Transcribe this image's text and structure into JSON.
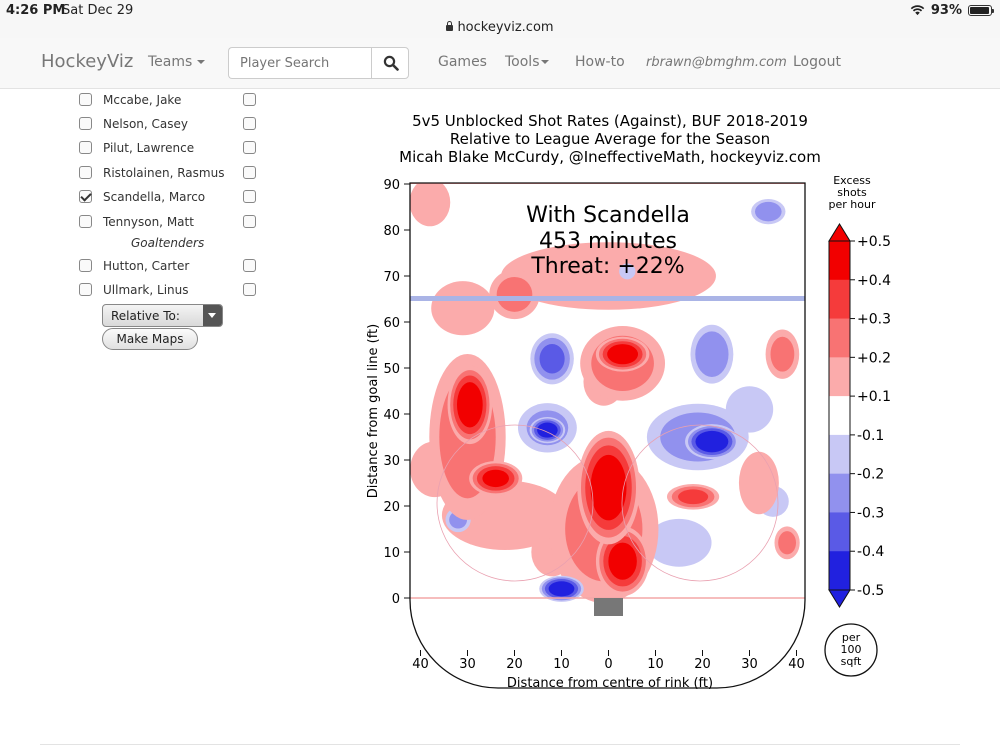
{
  "status_bar": {
    "time": "4:26 PM",
    "date": "Sat Dec 29",
    "battery": "93%"
  },
  "address_bar": {
    "url": "hockeyviz.com"
  },
  "navbar": {
    "brand": "HockeyViz",
    "teams_label": "Teams",
    "search_placeholder": "Player Search",
    "games_label": "Games",
    "tools_label": "Tools",
    "howto_label": "How-to",
    "user_email": "rbrawn@bmghm.com",
    "logout_label": "Logout"
  },
  "player_list": {
    "players": [
      {
        "name": "Mccabe, Jake",
        "checked": false
      },
      {
        "name": "Nelson, Casey",
        "checked": false
      },
      {
        "name": "Pilut, Lawrence",
        "checked": false
      },
      {
        "name": "Ristolainen, Rasmus",
        "checked": false
      },
      {
        "name": "Scandella, Marco",
        "checked": true
      },
      {
        "name": "Tennyson, Matt",
        "checked": false
      }
    ],
    "goaltenders_heading": "Goaltenders",
    "goaltenders": [
      {
        "name": "Hutton, Carter",
        "checked": false
      },
      {
        "name": "Ullmark, Linus",
        "checked": false
      }
    ],
    "relative_to_label": "Relative To:",
    "make_maps_label": "Make Maps"
  },
  "chart": {
    "title_line1": "5v5 Unblocked Shot Rates (Against), BUF 2018-2019",
    "title_line2": "Relative to League Average for the Season",
    "title_line3": "Micah Blake McCurdy, @IneffectiveMath, hockeyviz.com",
    "annotation_line1": "With Scandella",
    "annotation_line2": "453 minutes",
    "annotation_line3": "Threat: +22%",
    "xlabel": "Distance from centre of rink (ft)",
    "ylabel": "Distance from goal line (ft)",
    "xticks": [
      "40",
      "30",
      "20",
      "10",
      "0",
      "10",
      "20",
      "30",
      "40"
    ],
    "yticks": [
      "0",
      "10",
      "20",
      "30",
      "40",
      "50",
      "60",
      "70",
      "80",
      "90"
    ],
    "colorbar_title": [
      "Excess",
      "shots",
      "per hour"
    ],
    "colorbar_ticks": [
      "+0.5",
      "+0.4",
      "+0.3",
      "+0.2",
      "+0.1",
      "-0.1",
      "-0.2",
      "-0.3",
      "-0.4",
      "-0.5"
    ],
    "colorbar_colors": [
      "#f20000",
      "#f53b3b",
      "#f87373",
      "#fbabab",
      "#ffffff",
      "#c8c8f5",
      "#9191ee",
      "#5a5ae6",
      "#2121df"
    ],
    "unit_badge": [
      "per",
      "100",
      "sqft"
    ]
  },
  "chart_data": {
    "type": "heatmap",
    "x_range": [
      -42,
      42
    ],
    "y_range": [
      -8,
      90
    ],
    "blobs": [
      {
        "x": -29.5,
        "y": 42,
        "rx": 5,
        "ry": 9,
        "v": 0.45
      },
      {
        "x": -24,
        "y": 26,
        "rx": 6,
        "ry": 4,
        "v": 0.4
      },
      {
        "x": -30,
        "y": 35,
        "rx": 9,
        "ry": 20,
        "v": 0.22
      },
      {
        "x": -22,
        "y": 18,
        "rx": 16,
        "ry": 9,
        "v": 0.12
      },
      {
        "x": -37,
        "y": 28,
        "rx": 6,
        "ry": 7,
        "v": 0.15
      },
      {
        "x": -31,
        "y": 63,
        "rx": 8,
        "ry": 7,
        "v": 0.12
      },
      {
        "x": -20,
        "y": 66,
        "rx": 6,
        "ry": 6,
        "v": 0.2
      },
      {
        "x": -38,
        "y": 86,
        "rx": 5,
        "ry": 6,
        "v": 0.15
      },
      {
        "x": 0,
        "y": 24,
        "rx": 7,
        "ry": 13,
        "v": 0.45
      },
      {
        "x": 3,
        "y": 8,
        "rx": 6,
        "ry": 8,
        "v": 0.42
      },
      {
        "x": -1,
        "y": 15,
        "rx": 13,
        "ry": 18,
        "v": 0.2
      },
      {
        "x": -12,
        "y": 10,
        "rx": 5,
        "ry": 6,
        "v": 0.18
      },
      {
        "x": 3,
        "y": 53,
        "rx": 6,
        "ry": 4,
        "v": 0.45
      },
      {
        "x": 3,
        "y": 51,
        "rx": 10,
        "ry": 9,
        "v": 0.22
      },
      {
        "x": -1,
        "y": 47,
        "rx": 5,
        "ry": 6,
        "v": 0.15
      },
      {
        "x": 18,
        "y": 22,
        "rx": 6,
        "ry": 3,
        "v": 0.3
      },
      {
        "x": 32,
        "y": 25,
        "rx": 5,
        "ry": 8,
        "v": 0.13
      },
      {
        "x": 37,
        "y": 53,
        "rx": 4,
        "ry": 6,
        "v": 0.2
      },
      {
        "x": 38,
        "y": 12,
        "rx": 3,
        "ry": 4,
        "v": 0.2
      },
      {
        "x": 0,
        "y": 70,
        "rx": 28,
        "ry": 9,
        "v": 0.1
      },
      {
        "x": -13,
        "y": 36.5,
        "rx": 4,
        "ry": 3,
        "v": -0.45
      },
      {
        "x": -13,
        "y": 37,
        "rx": 7,
        "ry": 6,
        "v": -0.2
      },
      {
        "x": -12,
        "y": 52,
        "rx": 5,
        "ry": 6,
        "v": -0.3
      },
      {
        "x": 22,
        "y": 34,
        "rx": 6,
        "ry": 4,
        "v": -0.48
      },
      {
        "x": 19,
        "y": 35,
        "rx": 12,
        "ry": 8,
        "v": -0.22
      },
      {
        "x": 22,
        "y": 53,
        "rx": 5,
        "ry": 7,
        "v": -0.25
      },
      {
        "x": 30,
        "y": 41,
        "rx": 6,
        "ry": 6,
        "v": -0.12
      },
      {
        "x": -10,
        "y": 2,
        "rx": 5,
        "ry": 3,
        "v": -0.45
      },
      {
        "x": 15,
        "y": 12,
        "rx": 8,
        "ry": 6,
        "v": -0.15
      },
      {
        "x": -32,
        "y": 17,
        "rx": 3,
        "ry": 3,
        "v": -0.2
      },
      {
        "x": 34,
        "y": 84,
        "rx": 4,
        "ry": 3,
        "v": -0.25
      },
      {
        "x": 35,
        "y": 21,
        "rx": 4,
        "ry": 4,
        "v": -0.12
      },
      {
        "x": 4,
        "y": 71,
        "rx": 2,
        "ry": 2,
        "v": -0.15
      }
    ]
  }
}
